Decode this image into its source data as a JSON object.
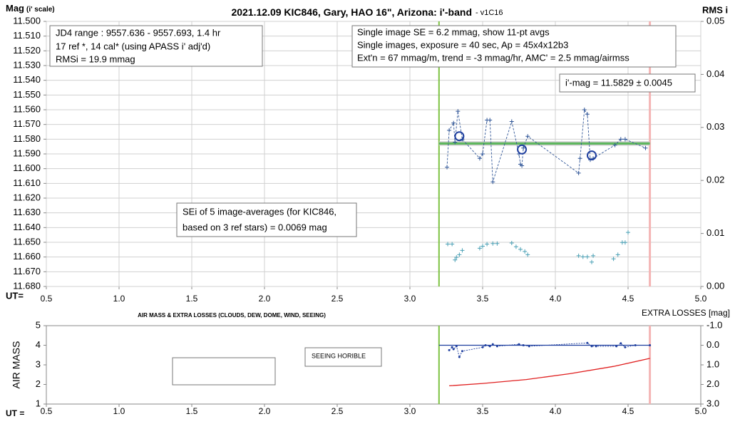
{
  "chart_data": [
    {
      "type": "scatter",
      "title": "2021.12.09 KIC846, Gary, HAO 16\", Arizona: i'-band",
      "subtitle": "- v1C16",
      "ylabel": "Mag",
      "ylabel_note": "(i' scale)",
      "y2label": "RMS i",
      "xlabel": "UT=",
      "xlim": [
        0.5,
        5.0
      ],
      "xticks": [
        0.5,
        {
          "value": 1.0,
          "label": "1.0"
        },
        1.5,
        {
          "value": 2.0,
          "label": "2.0"
        },
        2.5,
        {
          "value": 3.0,
          "label": "3.0"
        },
        3.5,
        {
          "value": 4.0,
          "label": "4.0"
        },
        4.5,
        {
          "value": 5.0,
          "label": "5.0"
        }
      ],
      "ylim": [
        11.68,
        11.5
      ],
      "yticks": [
        {
          "value": 11.5,
          "label": "11.500"
        },
        {
          "value": 11.51,
          "label": "11.510"
        },
        {
          "value": 11.52,
          "label": "11.520"
        },
        {
          "value": 11.53,
          "label": "11.530"
        },
        {
          "value": 11.54,
          "label": "11.540"
        },
        {
          "value": 11.55,
          "label": "11.550"
        },
        {
          "value": 11.56,
          "label": "11.560"
        },
        {
          "value": 11.57,
          "label": "11.570"
        },
        {
          "value": 11.58,
          "label": "11.580"
        },
        {
          "value": 11.59,
          "label": "11.590"
        },
        {
          "value": 11.6,
          "label": "11.600"
        },
        {
          "value": 11.61,
          "label": "11.610"
        },
        {
          "value": 11.62,
          "label": "11.620"
        },
        {
          "value": 11.63,
          "label": "11.630"
        },
        {
          "value": 11.64,
          "label": "11.640"
        },
        {
          "value": 11.65,
          "label": "11.650"
        },
        {
          "value": 11.66,
          "label": "11.660"
        },
        {
          "value": 11.67,
          "label": "11.670"
        },
        {
          "value": 11.68,
          "label": "11.680"
        }
      ],
      "y2lim": [
        0.0,
        0.05
      ],
      "y2ticks": [
        {
          "value": 0.0,
          "label": "0.00"
        },
        0.01,
        0.02,
        0.03,
        0.04,
        0.05
      ],
      "grid": true,
      "vlines": [
        {
          "x": 3.2,
          "color": "#7dc242"
        },
        {
          "x": 4.65,
          "color": "#f4b4b4"
        }
      ],
      "hlines": [
        {
          "y": 11.5829,
          "color": "#5cb85c"
        }
      ],
      "series": [
        {
          "color": "#2f5597",
          "line": "dashed",
          "marker": "plus",
          "x": [
            3.255,
            3.27,
            3.3,
            3.31,
            3.33,
            3.36,
            3.48,
            3.5,
            3.53,
            3.55,
            3.57,
            3.7,
            3.75,
            3.76,
            3.77,
            3.78,
            3.81,
            4.16,
            4.17,
            4.2,
            4.22,
            4.24,
            4.26,
            4.41,
            4.45,
            4.48,
            4.62
          ],
          "values": [
            11.599,
            11.574,
            11.569,
            11.582,
            11.561,
            11.58,
            11.593,
            11.59,
            11.567,
            11.567,
            11.609,
            11.568,
            11.59,
            11.597,
            11.598,
            11.586,
            11.578,
            11.603,
            11.593,
            11.56,
            11.563,
            11.594,
            11.593,
            11.584,
            11.58,
            11.58,
            11.586
          ]
        },
        {
          "color": "#1f3f9f",
          "line": "none",
          "marker": "circle",
          "x": [
            3.34,
            3.77,
            4.25
          ],
          "values": [
            11.578,
            11.587,
            11.591
          ]
        },
        {
          "color": "#4aa0b5",
          "line": "none",
          "marker": "plus",
          "axis": "y2",
          "x": [
            3.26,
            3.29,
            3.31,
            3.32,
            3.34,
            3.36,
            3.48,
            3.5,
            3.53,
            3.57,
            3.6,
            3.7,
            3.73,
            3.76,
            3.79,
            3.81,
            4.16,
            4.19,
            4.22,
            4.25,
            4.26,
            4.4,
            4.43,
            4.46,
            4.48,
            4.5
          ],
          "values": [
            0.008,
            0.008,
            0.005,
            0.0055,
            0.006,
            0.0068,
            0.0072,
            0.0076,
            0.008,
            0.0081,
            0.0081,
            0.0082,
            0.0075,
            0.007,
            0.0066,
            0.006,
            0.0058,
            0.0056,
            0.0056,
            0.0046,
            0.0058,
            0.0052,
            0.006,
            0.0083,
            0.0083,
            0.0102
          ]
        }
      ],
      "annotations": {
        "info_left": [
          "JD4 range : 9557.636 - 9557.693, 1.4  hr",
          "17 ref *, 14 cal* (using APASS i' adj'd)",
          "RMSi = 19.9 mmag"
        ],
        "info_right": [
          "Single image SE = 6.2 mmag, show 11-pt avgs",
          "Single images, exposure = 40 sec, Ap = 45x4x12b3",
          "Ext'n = 67 mmag/m, trend = -3 mmag/hr, AMC' = 2.5 mmag/airmss"
        ],
        "result": "i'-mag = 11.5829 ± 0.0045",
        "se_note": [
          "SEi of 5 image-averages (for KIC846,",
          "based on 3 ref stars) = 0.0069 mag"
        ]
      }
    },
    {
      "type": "line",
      "title": "AIR MASS & EXTRA LOSSES (CLOUDS, DEW, DOME, WIND, SEEING)",
      "ylabel": "AIR MASS",
      "y2label": "EXTRA LOSSES [mag]",
      "xlabel": "UT =",
      "xlim": [
        0.5,
        5.0
      ],
      "xticks": [
        0.5,
        {
          "value": 1.0,
          "label": "1.0"
        },
        1.5,
        {
          "value": 2.0,
          "label": "2.0"
        },
        2.5,
        {
          "value": 3.0,
          "label": "3.0"
        },
        3.5,
        {
          "value": 4.0,
          "label": "4.0"
        },
        4.5,
        {
          "value": 5.0,
          "label": "5.0"
        }
      ],
      "ylim": [
        1,
        5
      ],
      "yticks": [
        1,
        2,
        3,
        4,
        5
      ],
      "y2lim": [
        3.0,
        -1.0
      ],
      "y2ticks": [
        {
          "value": -1.0,
          "label": "-1.0"
        },
        {
          "value": 0.0,
          "label": "0.0"
        },
        {
          "value": 1.0,
          "label": "1.0"
        },
        {
          "value": 2.0,
          "label": "2.0"
        },
        {
          "value": 3.0,
          "label": "3.0"
        }
      ],
      "grid": false,
      "vlines": [
        {
          "x": 3.2,
          "color": "#7dc242"
        },
        {
          "x": 4.65,
          "color": "#f4b4b4"
        }
      ],
      "hlines": [
        {
          "y": 0.0,
          "axis": "y2",
          "color": "#1f3f9f"
        }
      ],
      "series": [
        {
          "name": "AIR MASS",
          "color": "#e02020",
          "line": "solid",
          "marker": "none",
          "x": [
            3.27,
            3.5,
            3.8,
            4.1,
            4.4,
            4.65
          ],
          "values": [
            1.93,
            2.05,
            2.25,
            2.55,
            2.92,
            3.33
          ]
        },
        {
          "name": "Extra Losses",
          "color": "#1f3f9f",
          "line": "dotted",
          "marker": "dot",
          "axis": "y2",
          "x": [
            3.27,
            3.29,
            3.3,
            3.32,
            3.34,
            3.36,
            3.5,
            3.52,
            3.55,
            3.57,
            3.6,
            3.75,
            3.78,
            3.82,
            4.22,
            4.25,
            4.28,
            4.42,
            4.45,
            4.48,
            4.55,
            4.65
          ],
          "values": [
            0.25,
            0.1,
            0.2,
            0.05,
            0.6,
            0.3,
            0.1,
            0.0,
            0.05,
            -0.05,
            0.05,
            -0.05,
            0.0,
            0.05,
            -0.12,
            0.05,
            0.05,
            0.05,
            -0.1,
            0.1,
            0.0,
            0.0
          ]
        }
      ],
      "annotations": {
        "note": "SEEING HORIBLE"
      }
    }
  ]
}
